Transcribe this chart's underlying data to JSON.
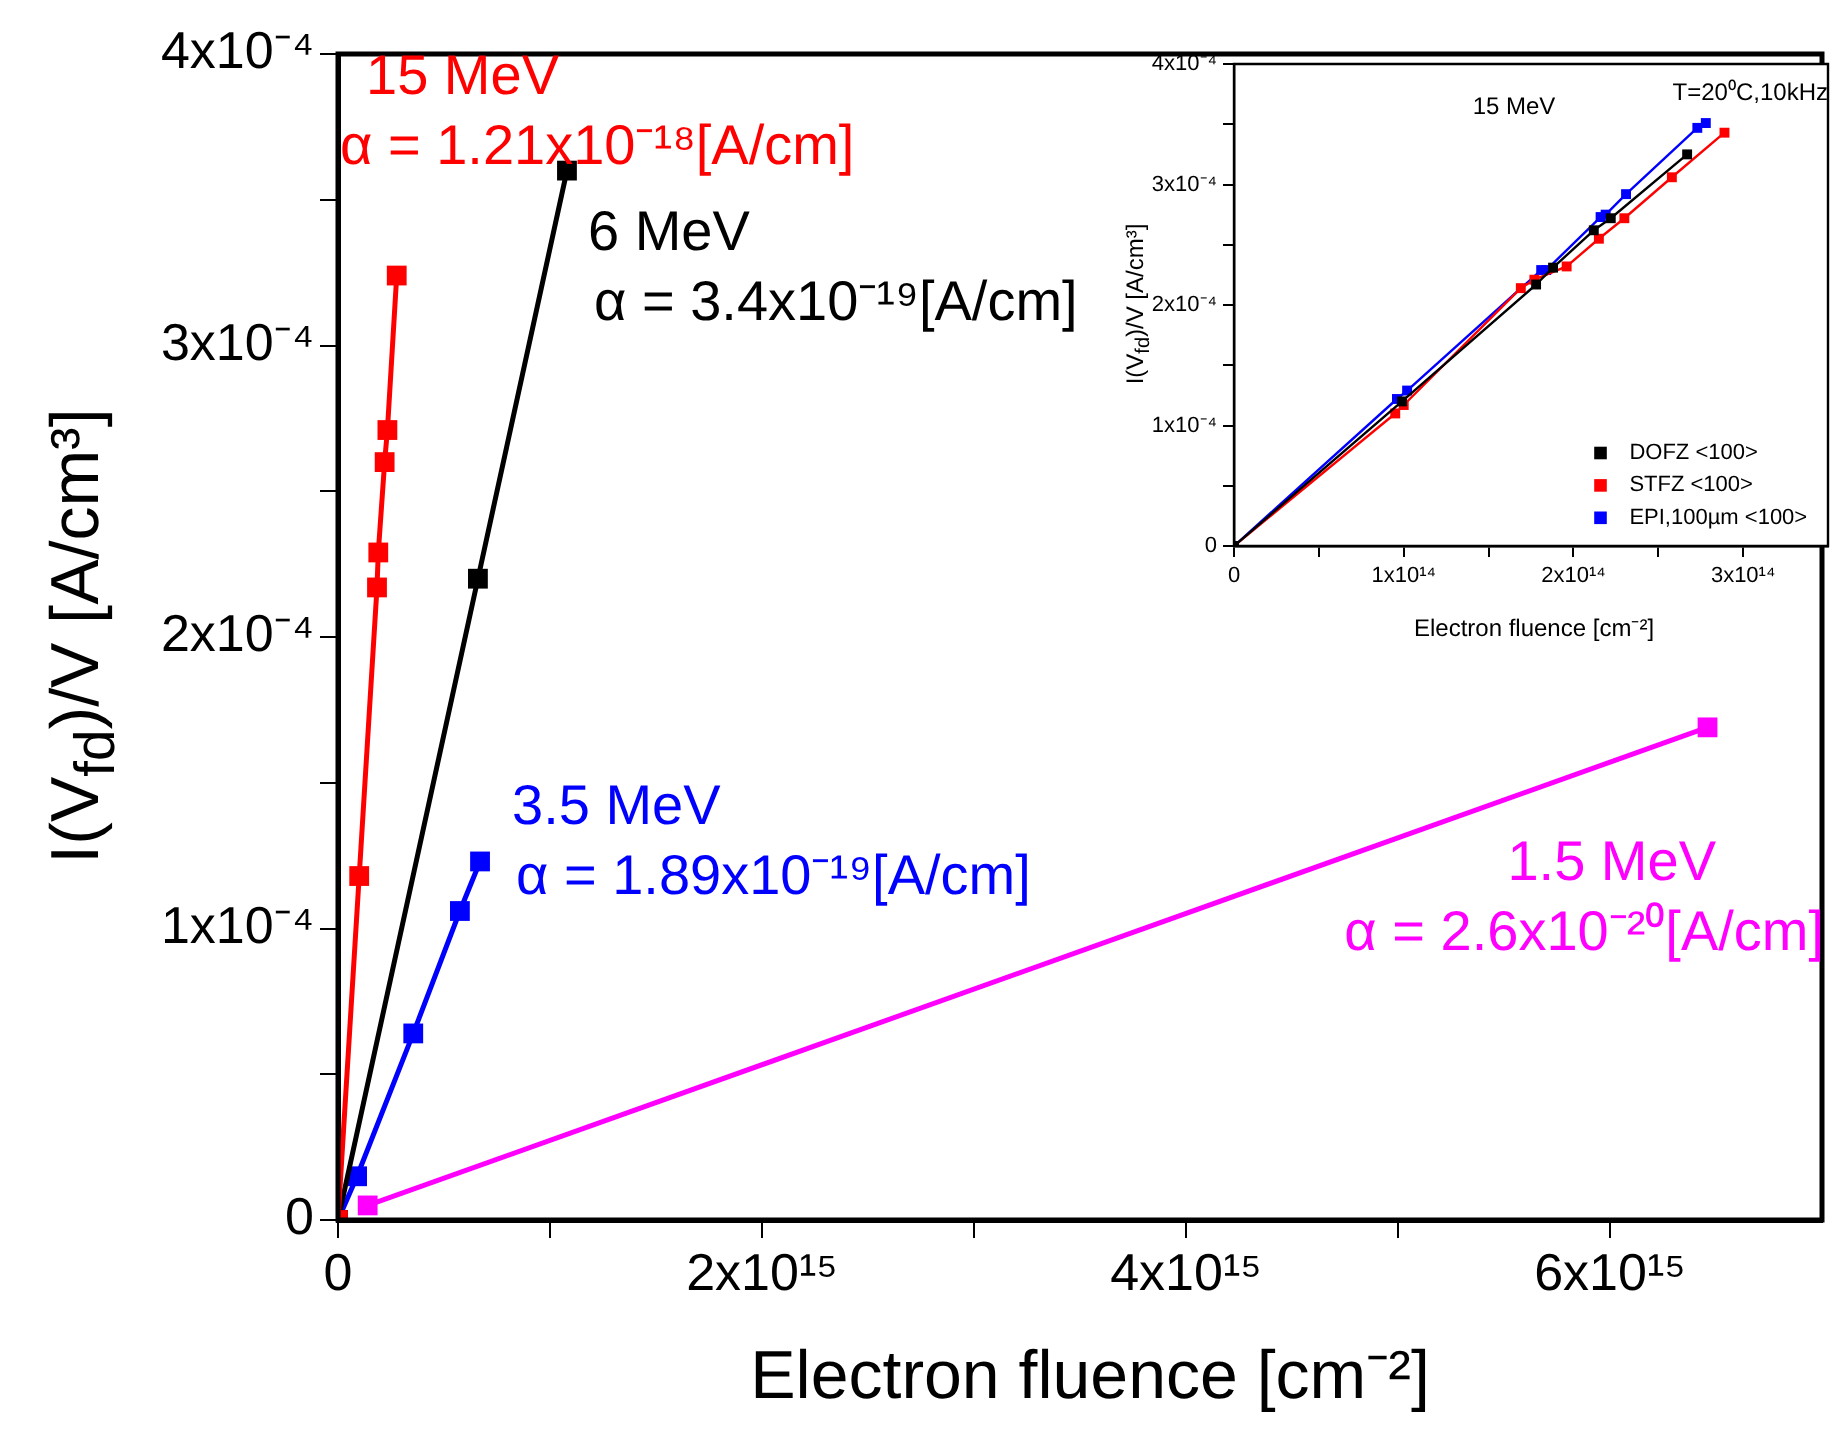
{
  "chart_data": [
    {
      "type": "line",
      "xlabel": "Electron fluence [cm⁻²]",
      "ylabel": "I(V$_{fd}$)/V [A/cm³]",
      "marker": "square",
      "grid": false,
      "legend": false,
      "xlim": [
        0,
        7000000000000000.0
      ],
      "ylim": [
        0,
        0.0004
      ],
      "xticks": [
        {
          "value": 0,
          "label": "0"
        },
        {
          "value": 1000000000000000.0,
          "label": null
        },
        {
          "value": 2000000000000000.0,
          "label": "2x10¹⁵"
        },
        {
          "value": 3000000000000000.0,
          "label": null
        },
        {
          "value": 4000000000000000.0,
          "label": "4x10¹⁵"
        },
        {
          "value": 5000000000000000.0,
          "label": null
        },
        {
          "value": 6000000000000000.0,
          "label": "6x10¹⁵"
        }
      ],
      "yticks": [
        {
          "value": 0,
          "label": "0"
        },
        {
          "value": 5e-05,
          "label": null
        },
        {
          "value": 0.0001,
          "label": "1x10⁻⁴"
        },
        {
          "value": 0.00015,
          "label": null
        },
        {
          "value": 0.0002,
          "label": "2x10⁻⁴"
        },
        {
          "value": 0.00025,
          "label": null
        },
        {
          "value": 0.0003,
          "label": "3x10⁻⁴"
        },
        {
          "value": 0.00035,
          "label": null
        },
        {
          "value": 0.0004,
          "label": "4x10⁻⁴"
        }
      ],
      "series": [
        {
          "name": "15 MeV",
          "color": "#ff0000",
          "x": [
            0,
            100000000000000.0,
            184000000000000.0,
            190000000000000.0,
            220000000000000.0,
            233000000000000.0,
            277000000000000.0
          ],
          "values": [
            0,
            0.000118,
            0.000217,
            0.000229,
            0.00026,
            0.000271,
            0.000324
          ]
        },
        {
          "name": "6 MeV",
          "color": "#000000",
          "x": [
            0,
            660000000000000.0,
            1080000000000000.0
          ],
          "values": [
            0,
            0.00022,
            0.00036
          ]
        },
        {
          "name": "3.5 MeV",
          "color": "#0000ff",
          "x": [
            0,
            90000000000000.0,
            355000000000000.0,
            575000000000000.0,
            670000000000000.0
          ],
          "values": [
            0,
            1.5e-05,
            6.4e-05,
            0.000106,
            0.000123
          ]
        },
        {
          "name": "1.5 MeV",
          "color": "#ff00ff",
          "x": [
            140000000000000.0,
            6460000000000000.0
          ],
          "values": [
            5e-06,
            0.000169
          ]
        }
      ],
      "annotations": [
        "α = 1.21x10⁻¹⁸[A/cm]",
        "α = 3.4x10⁻¹⁹[A/cm]",
        "α = 1.89x10⁻¹⁹[A/cm]",
        "α = 2.6x10⁻²⁰[A/cm]"
      ]
    },
    {
      "type": "line",
      "xlabel": "Electron fluence [cm⁻²]",
      "ylabel": "I(V$_{fd}$)/V [A/cm³]",
      "marker": "square",
      "grid": false,
      "legend": "bottom right",
      "xlim": [
        0,
        350000000000000.0
      ],
      "ylim": [
        0,
        0.0004
      ],
      "xticks": [
        {
          "value": 0,
          "label": "0"
        },
        {
          "value": 50000000000000.0,
          "label": null
        },
        {
          "value": 100000000000000.0,
          "label": "1x10¹⁴"
        },
        {
          "value": 150000000000000.0,
          "label": null
        },
        {
          "value": 200000000000000.0,
          "label": "2x10¹⁴"
        },
        {
          "value": 250000000000000.0,
          "label": null
        },
        {
          "value": 300000000000000.0,
          "label": "3x10¹⁴"
        }
      ],
      "yticks": [
        {
          "value": 0,
          "label": "0"
        },
        {
          "value": 5e-05,
          "label": null
        },
        {
          "value": 0.0001,
          "label": "1x10⁻⁴"
        },
        {
          "value": 0.00015,
          "label": null
        },
        {
          "value": 0.0002,
          "label": "2x10⁻⁴"
        },
        {
          "value": 0.00025,
          "label": null
        },
        {
          "value": 0.0003,
          "label": "3x10⁻⁴"
        },
        {
          "value": 0.00035,
          "label": null
        },
        {
          "value": 0.0004,
          "label": "4x10⁻⁴"
        }
      ],
      "series": [
        {
          "name": "DOFZ <100>",
          "color": "#000000",
          "x": [
            0,
            99000000000000.0,
            178000000000000.0,
            188000000000000.0,
            212000000000000.0,
            222000000000000.0,
            267000000000000.0
          ],
          "values": [
            0,
            0.00012,
            0.000217,
            0.000231,
            0.000262,
            0.000272,
            0.000325
          ]
        },
        {
          "name": "STFZ <100>",
          "color": "#ff0000",
          "x": [
            0,
            95000000000000.0,
            100000000000000.0,
            169000000000000.0,
            177000000000000.0,
            196000000000000.0,
            215000000000000.0,
            230000000000000.0,
            258000000000000.0,
            289000000000000.0
          ],
          "values": [
            0,
            0.00011,
            0.000117,
            0.000214,
            0.000221,
            0.000232,
            0.000255,
            0.000272,
            0.000306,
            0.000343
          ]
        },
        {
          "name": "EPI,100µm <100>",
          "color": "#0000ff",
          "x": [
            0,
            96000000000000.0,
            102000000000000.0,
            181000000000000.0,
            184000000000000.0,
            216000000000000.0,
            219000000000000.0,
            231000000000000.0,
            273000000000000.0,
            278000000000000.0
          ],
          "values": [
            0,
            0.000122,
            0.000129,
            0.000229,
            0.000229,
            0.000273,
            0.000275,
            0.000292,
            0.000347,
            0.000351
          ]
        }
      ],
      "annotations": [
        "15 MeV",
        "T=20⁰C,10kHz"
      ]
    }
  ]
}
